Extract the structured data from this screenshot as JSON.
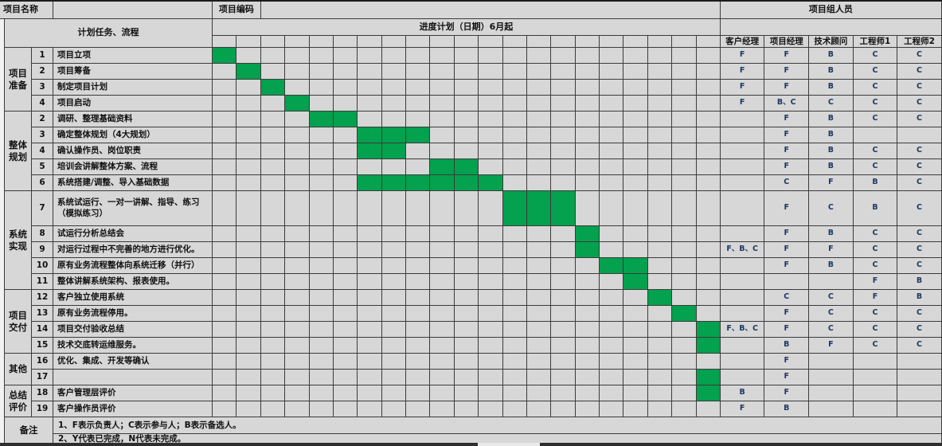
{
  "header": {
    "project_name_label": "项目名称",
    "project_name_value": "",
    "project_code_label": "项目编码",
    "project_code_value": "",
    "team_label": "项目组人员",
    "plan_tasks_label": "计划任务、流程",
    "schedule_label": "进度计划（日期）6月起",
    "timeline_columns": 21,
    "person_columns": [
      "客户经理",
      "项目经理",
      "技术顾问",
      "工程师1",
      "工程师2"
    ]
  },
  "groups": [
    {
      "label": "项目准备",
      "row_start": 0,
      "row_count": 4
    },
    {
      "label": "整体规划",
      "row_start": 4,
      "row_count": 5
    },
    {
      "label": "系统实现",
      "row_start": 9,
      "row_count": 5
    },
    {
      "label": "项目交付",
      "row_start": 14,
      "row_count": 4
    },
    {
      "label": "其他",
      "row_start": 18,
      "row_count": 2
    },
    {
      "label": "总结评价",
      "row_start": 20,
      "row_count": 2
    }
  ],
  "rows": [
    {
      "num": "1",
      "task": "项目立项",
      "green": [
        0
      ],
      "people": [
        "F",
        "F",
        "B",
        "C",
        "C"
      ]
    },
    {
      "num": "2",
      "task": "项目筹备",
      "green": [
        1
      ],
      "people": [
        "F",
        "F",
        "B",
        "C",
        "C"
      ]
    },
    {
      "num": "3",
      "task": "制定项目计划",
      "green": [
        2
      ],
      "people": [
        "F",
        "F",
        "B",
        "C",
        "C"
      ]
    },
    {
      "num": "4",
      "task": "项目启动",
      "green": [
        3
      ],
      "people": [
        "F",
        "B、C",
        "C",
        "C",
        "C"
      ]
    },
    {
      "num": "2",
      "task": "调研、整理基础资料",
      "green": [
        4,
        5
      ],
      "people": [
        "",
        "F",
        "B",
        "C",
        "C"
      ]
    },
    {
      "num": "3",
      "task": "确定整体规划（4大规划）",
      "green": [
        6,
        7,
        8
      ],
      "people": [
        "",
        "F",
        "B",
        "",
        ""
      ]
    },
    {
      "num": "4",
      "task": "确认操作员、岗位职责",
      "green": [
        6,
        7
      ],
      "people": [
        "",
        "F",
        "B",
        "C",
        "C"
      ]
    },
    {
      "num": "5",
      "task": "培训会讲解整体方案、流程",
      "green": [
        9,
        10
      ],
      "people": [
        "",
        "F",
        "B",
        "C",
        "C"
      ]
    },
    {
      "num": "6",
      "task": "系统搭建/调整、导入基础数据",
      "green": [
        6,
        7,
        8,
        9,
        10,
        11
      ],
      "people": [
        "",
        "C",
        "F",
        "B",
        "C"
      ]
    },
    {
      "num": "7",
      "task": "系统试运行、一对一讲解、指导、练习（模拟练习）",
      "green": [
        12,
        13,
        14
      ],
      "people": [
        "",
        "F",
        "C",
        "B",
        "C"
      ],
      "tall": true
    },
    {
      "num": "8",
      "task": "试运行分析总结会",
      "green": [
        15
      ],
      "people": [
        "",
        "F",
        "B",
        "C",
        "C"
      ]
    },
    {
      "num": "9",
      "task": "对运行过程中不完善的地方进行优化。",
      "green": [
        15
      ],
      "people": [
        "F、B、C",
        "F",
        "F",
        "C",
        "C"
      ]
    },
    {
      "num": "10",
      "task": "原有业务流程整体向系统迁移（并行）",
      "green": [
        16,
        17
      ],
      "people": [
        "",
        "F",
        "B",
        "C",
        "C"
      ]
    },
    {
      "num": "11",
      "task": "整体讲解系统架构、报表使用。",
      "green": [
        17
      ],
      "people": [
        "",
        "",
        "",
        "F",
        "B"
      ]
    },
    {
      "num": "12",
      "task": "客户独立使用系统",
      "green": [
        18
      ],
      "people": [
        "",
        "C",
        "C",
        "F",
        "B"
      ]
    },
    {
      "num": "13",
      "task": "原有业务流程停用。",
      "green": [
        19
      ],
      "people": [
        "",
        "F",
        "C",
        "C",
        "C"
      ]
    },
    {
      "num": "14",
      "task": "项目交付验收总结",
      "green": [
        20
      ],
      "people": [
        "F、B、C",
        "F",
        "C",
        "C",
        "C"
      ]
    },
    {
      "num": "15",
      "task": "技术交底转运维服务。",
      "green": [
        20
      ],
      "people": [
        "",
        "B",
        "F",
        "C",
        "C"
      ]
    },
    {
      "num": "16",
      "task": "优化、集成、开发等确认",
      "green": [],
      "people": [
        "",
        "F",
        "",
        "",
        ""
      ]
    },
    {
      "num": "17",
      "task": "",
      "green": [
        20
      ],
      "people": [
        "",
        "F",
        "",
        "",
        ""
      ]
    },
    {
      "num": "18",
      "task": "客户管理层评价",
      "green": [
        20
      ],
      "people": [
        "B",
        "F",
        "",
        "",
        ""
      ]
    },
    {
      "num": "19",
      "task": "客户操作员评价",
      "green": [],
      "people": [
        "F",
        "B",
        "",
        "",
        ""
      ]
    }
  ],
  "notes": {
    "label": "备注",
    "lines": [
      "1、F表示负责人；C表示参与人；B表示备选人。",
      "2、Y代表已完成，N代表未完成。"
    ]
  },
  "legend": {
    "F": "负责人",
    "C": "参与人",
    "B": "备选人",
    "Y": "已完成",
    "N": "未完成"
  },
  "colors": {
    "gantt_green": "#04A14E",
    "cell_bg": "#D7D7D7",
    "grid_line": "#3B3B3B",
    "assignment_letter": "#1F3864"
  }
}
